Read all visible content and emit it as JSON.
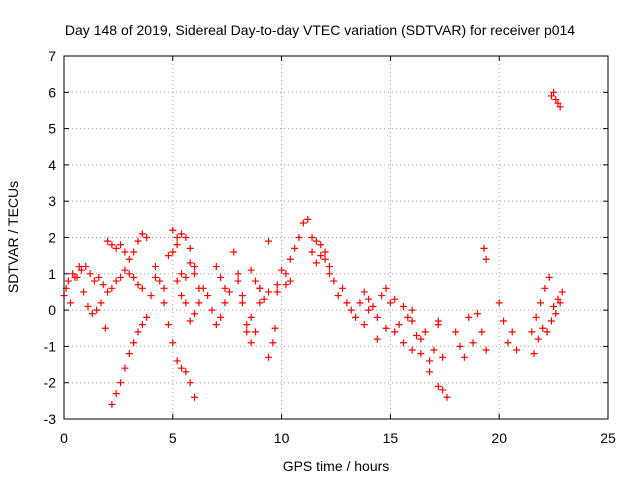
{
  "chart_data": {
    "type": "scatter",
    "title": "Day 148 of 2019, Sidereal Day-to-day VTEC variation (SDTVAR) for receiver p014",
    "xlabel": "GPS time / hours",
    "ylabel": "SDTVAR / TECUs",
    "xlim": [
      0,
      25
    ],
    "ylim": [
      -3,
      7
    ],
    "xticks": [
      "0",
      "5",
      "10",
      "15",
      "20",
      "25"
    ],
    "yticks": [
      "-3",
      "-2",
      "-1",
      "0",
      "1",
      "2",
      "3",
      "4",
      "5",
      "6",
      "7"
    ],
    "grid": true,
    "marker": "+",
    "series": [
      {
        "name": "SDTVAR",
        "color": "#ff0000",
        "x": [
          0.0,
          0.2,
          0.4,
          0.6,
          0.8,
          1.0,
          1.2,
          1.4,
          1.6,
          1.8,
          2.0,
          2.2,
          2.4,
          2.6,
          2.8,
          3.0,
          3.2,
          3.4,
          3.6,
          0.1,
          0.3,
          0.5,
          0.7,
          0.9,
          1.1,
          1.3,
          1.5,
          1.7,
          1.9,
          2.0,
          2.2,
          2.4,
          2.6,
          2.8,
          3.0,
          3.2,
          3.4,
          3.6,
          3.8,
          2.2,
          2.4,
          2.6,
          2.8,
          3.0,
          3.2,
          3.4,
          3.6,
          3.8,
          4.0,
          4.2,
          4.2,
          4.4,
          4.6,
          4.8,
          5.0,
          5.2,
          5.4,
          5.6,
          5.8,
          6.0,
          4.6,
          4.8,
          5.0,
          5.2,
          5.4,
          5.6,
          5.8,
          6.0,
          6.2,
          6.4,
          6.6,
          6.8,
          7.0,
          7.2,
          7.4,
          7.6,
          5.0,
          5.2,
          5.4,
          5.6,
          5.8,
          6.0,
          6.2,
          5.2,
          5.4,
          5.6,
          5.8,
          6.0,
          7.0,
          7.2,
          7.4,
          7.8,
          8.0,
          8.2,
          8.4,
          8.6,
          8.8,
          9.0,
          9.2,
          9.4,
          9.6,
          9.8,
          8.0,
          8.2,
          8.4,
          8.6,
          9.0,
          9.4,
          9.7,
          8.6,
          8.8,
          9.0,
          9.4,
          9.8,
          10.0,
          10.2,
          10.4,
          10.2,
          10.4,
          10.6,
          10.8,
          11.0,
          11.2,
          11.4,
          11.6,
          11.8,
          12.0,
          12.2,
          12.4,
          11.4,
          11.6,
          11.8,
          12.0,
          12.2,
          12.6,
          12.8,
          13.0,
          13.2,
          13.4,
          13.6,
          13.8,
          14.0,
          14.2,
          14.4,
          14.6,
          14.8,
          15.0,
          13.8,
          14.0,
          14.4,
          14.8,
          15.2,
          15.6,
          16.0,
          15.2,
          15.4,
          15.6,
          15.8,
          16.0,
          16.2,
          16.4,
          16.6,
          16.8,
          17.0,
          17.2,
          17.4,
          16.0,
          16.4,
          16.8,
          17.2,
          17.6,
          17.2,
          17.4,
          18.0,
          18.2,
          18.4,
          18.6,
          18.8,
          19.0,
          19.2,
          19.4,
          19.3,
          19.4,
          20.0,
          20.2,
          20.4,
          20.6,
          20.8,
          21.5,
          21.7,
          21.9,
          22.1,
          22.3,
          22.5,
          22.7,
          22.9,
          21.6,
          21.8,
          22.0,
          22.2,
          22.4,
          22.6,
          22.8,
          22.4,
          22.5,
          22.6,
          22.7,
          22.8
        ],
        "y": [
          0.4,
          0.8,
          1.0,
          0.9,
          1.1,
          1.2,
          1.0,
          0.8,
          0.9,
          0.7,
          0.5,
          0.6,
          0.8,
          0.9,
          1.1,
          1.0,
          0.9,
          0.7,
          0.6,
          0.6,
          0.2,
          0.9,
          1.2,
          0.5,
          0.1,
          -0.1,
          0.0,
          0.2,
          -0.5,
          1.9,
          1.8,
          1.7,
          1.8,
          1.6,
          1.4,
          1.6,
          1.9,
          2.1,
          2.0,
          -2.6,
          -2.3,
          -2.0,
          -1.6,
          -1.2,
          -0.9,
          -0.6,
          -0.4,
          -0.2,
          0.4,
          0.9,
          1.2,
          0.8,
          0.2,
          -0.4,
          -0.9,
          -1.4,
          -1.6,
          -1.7,
          -2.0,
          -2.4,
          0.6,
          1.5,
          2.2,
          1.8,
          1.0,
          0.2,
          -0.3,
          -0.1,
          0.2,
          0.6,
          0.4,
          0.0,
          -0.4,
          -0.2,
          0.2,
          0.5,
          1.6,
          2.0,
          2.1,
          2.0,
          1.7,
          1.0,
          0.6,
          0.8,
          0.4,
          0.9,
          1.3,
          1.2,
          1.2,
          0.9,
          0.6,
          1.6,
          1.0,
          0.4,
          -0.4,
          -0.9,
          0.8,
          0.6,
          0.3,
          -1.3,
          -0.9,
          0.5,
          0.8,
          0.2,
          -0.6,
          1.1,
          0.2,
          0.5,
          -0.5,
          -0.2,
          -0.6,
          0.6,
          1.9,
          0.7,
          1.1,
          0.7,
          0.8,
          1.0,
          1.4,
          1.7,
          2.0,
          2.4,
          2.5,
          2.0,
          1.3,
          1.5,
          1.6,
          1.2,
          0.8,
          1.6,
          1.9,
          1.8,
          1.4,
          1.0,
          0.4,
          0.6,
          0.2,
          0.0,
          -0.2,
          0.2,
          0.5,
          0.3,
          0.1,
          -0.2,
          0.4,
          0.6,
          0.2,
          -0.4,
          0.0,
          -0.8,
          -0.5,
          0.3,
          0.1,
          0.0,
          -0.6,
          -0.4,
          -0.9,
          -0.2,
          -1.1,
          -0.7,
          -1.2,
          -0.6,
          -1.7,
          -1.1,
          -0.4,
          -1.3,
          -0.3,
          -0.8,
          -1.4,
          -2.1,
          -2.4,
          -0.3,
          -2.2,
          -0.6,
          -1.0,
          -1.3,
          -0.2,
          -0.9,
          -0.1,
          -0.6,
          -1.1,
          1.7,
          1.4,
          0.2,
          -0.3,
          -0.9,
          -0.6,
          -1.1,
          -0.6,
          -0.2,
          0.2,
          0.6,
          0.9,
          0.1,
          0.3,
          0.5,
          -1.2,
          -0.8,
          -0.5,
          -0.6,
          -0.3,
          -0.1,
          0.2,
          5.9,
          6.0,
          5.8,
          5.7,
          5.6
        ]
      }
    ]
  }
}
